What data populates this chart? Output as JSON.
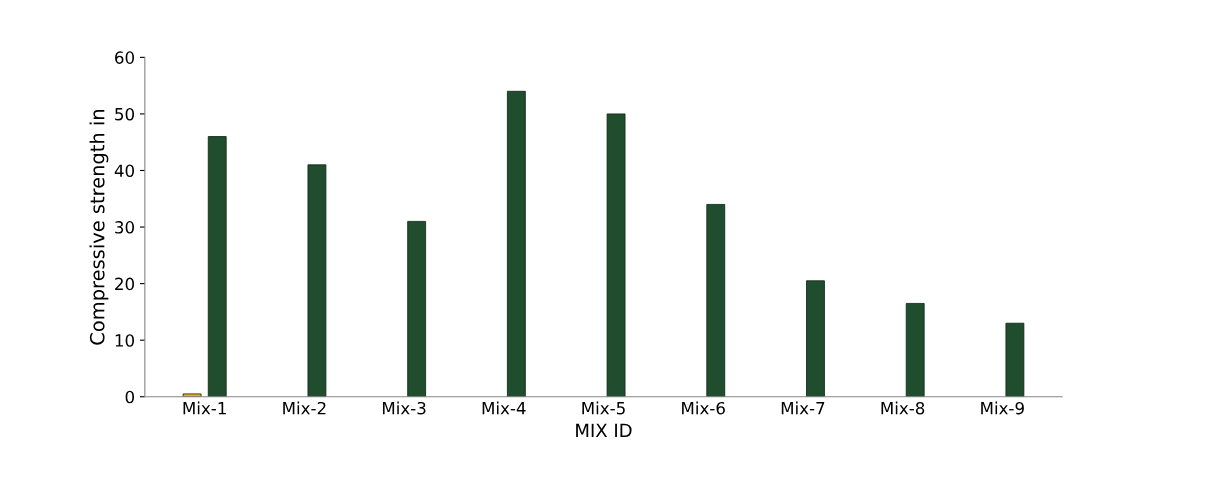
{
  "chart_data": {
    "type": "bar",
    "xlabel": "MIX ID",
    "ylabel": "Compressive strength in",
    "categories": [
      "Mix-1",
      "Mix-2",
      "Mix-3",
      "Mix-4",
      "Mix-5",
      "Mix-6",
      "Mix-7",
      "Mix-8",
      "Mix-9"
    ],
    "series": [
      {
        "color": "#f0b400",
        "values": [
          0.5,
          null,
          null,
          null,
          null,
          null,
          null,
          null,
          null
        ]
      },
      {
        "color": "#1f4d2e",
        "values": [
          46,
          41,
          31,
          54,
          50,
          34,
          20.5,
          16.5,
          13
        ]
      }
    ],
    "ylim": [
      0,
      60
    ],
    "yticks": [
      0,
      10,
      20,
      30,
      40,
      50,
      60
    ],
    "grid": false,
    "legend": false
  }
}
